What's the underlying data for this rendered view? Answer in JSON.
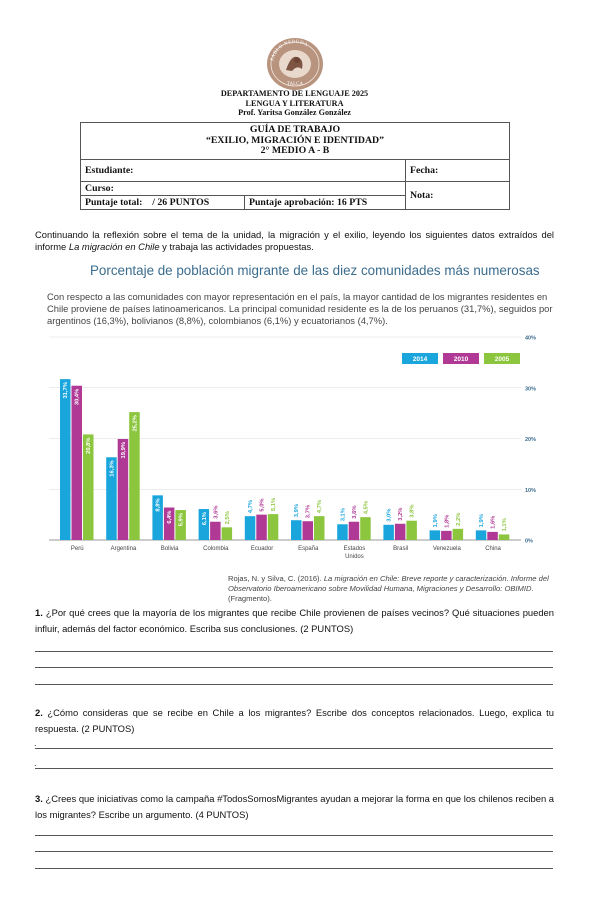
{
  "logo_text": "PABLO NERUDA · TALCA",
  "header": {
    "line1": "DEPARTAMENTO DE LENGUAJE 2025",
    "line2": "LENGUA Y LITERATURA",
    "line3": "Prof. Yaritsa González González"
  },
  "guide": {
    "title1": "GUÍA DE TRABAJO",
    "title2": "“EXILIO, MIGRACIÓN E IDENTIDAD”",
    "title3": "2° MEDIO A - B",
    "student_label": "Estudiante:",
    "date_label": "Fecha:",
    "course_label": "Curso:",
    "score_label": "Puntaje total:",
    "score_value": "/ 26 PUNTOS",
    "pass_label": "Puntaje aprobación: 16 PTS",
    "grade_label": "Nota:"
  },
  "intro": {
    "text_before": "Continuando la reflexión sobre el tema de la unidad, la migración y el exilio, leyendo los siguientes datos extraídos del informe ",
    "italic": "La migración en Chile",
    "text_after": " y trabaja las actividades propuestas."
  },
  "chart_section": {
    "title": "Porcentaje de población migrante de las diez comunidades más numerosas",
    "description": "Con respecto a las comunidades con mayor representación en el país, la mayor cantidad de los migrantes residentes en Chile proviene de países latinoamericanos. La principal comunidad residente es la de los peruanos (31,7%), seguidos por argentinos (16,3%), bolivianos (8,8%), colombianos (6,1%) y ecuatorianos (4,7%).",
    "source_before": "Rojas, N. y Silva, C. (2016). ",
    "source_italic": "La migración en Chile: Breve reporte y caracterización. Informe del Observatorio Iberoamericano sobre Movilidad Humana, Migraciones y Desarrollo: OBIMID",
    "source_after": ". (Fragmento)."
  },
  "chart_data": {
    "type": "bar",
    "categories": [
      "Perú",
      "Argentina",
      "Bolivia",
      "Colombia",
      "Ecuador",
      "España",
      "Estados Unidos",
      "Brasil",
      "Venezuela",
      "China"
    ],
    "series": [
      {
        "name": "2014",
        "color": "#1aa6dd",
        "values": [
          31.7,
          16.3,
          8.8,
          6.1,
          4.7,
          3.9,
          3.1,
          3.0,
          1.9,
          1.9
        ],
        "labels": [
          "31,7%",
          "16,3%",
          "8,8%",
          "6,1%",
          "4,7%",
          "3,9%",
          "3,1%",
          "3,0%",
          "1,9%",
          "1,9%"
        ]
      },
      {
        "name": "2010",
        "color": "#b03996",
        "values": [
          30.4,
          19.9,
          6.4,
          3.6,
          5.0,
          3.7,
          3.6,
          3.2,
          1.8,
          1.6
        ],
        "labels": [
          "30,4%",
          "19,9%",
          "6,4%",
          "3,6%",
          "5,0%",
          "3,7%",
          "3,6%",
          "3,2%",
          "1,8%",
          "1,6%"
        ]
      },
      {
        "name": "2005",
        "color": "#8cc63e",
        "values": [
          20.8,
          25.2,
          5.9,
          2.5,
          5.1,
          4.7,
          4.5,
          3.8,
          2.2,
          1.1
        ],
        "labels": [
          "20,8%",
          "25,2%",
          "5,9%",
          "2,5%",
          "5,1%",
          "4,7%",
          "4,5%",
          "3,8%",
          "2,2%",
          "1,1%"
        ]
      }
    ],
    "ylim": [
      0,
      40
    ],
    "yticks": [
      "0%",
      "10%",
      "20%",
      "30%",
      "40%"
    ],
    "grid": true,
    "legend_position": "top-right"
  },
  "questions": [
    {
      "number": "1.",
      "text": "¿Por qué crees que la mayoría de los migrantes que recibe Chile provienen de países vecinos? Qué situaciones pueden influir, además del factor económico. Escriba sus conclusiones. (2 PUNTOS)"
    },
    {
      "number": "2.",
      "text": "¿Cómo consideras que se recibe en Chile a los migrantes? Escribe dos conceptos relacionados. Luego, explica tu respuesta. (2 PUNTOS)"
    },
    {
      "number": "3.",
      "text": "¿Crees que iniciativas como la campaña #TodosSomosMigrantes ayudan a mejorar la forma en que los chilenos reciben a los migrantes? Escribe un argumento. (4 PUNTOS)"
    }
  ],
  "answer_bullet": "."
}
